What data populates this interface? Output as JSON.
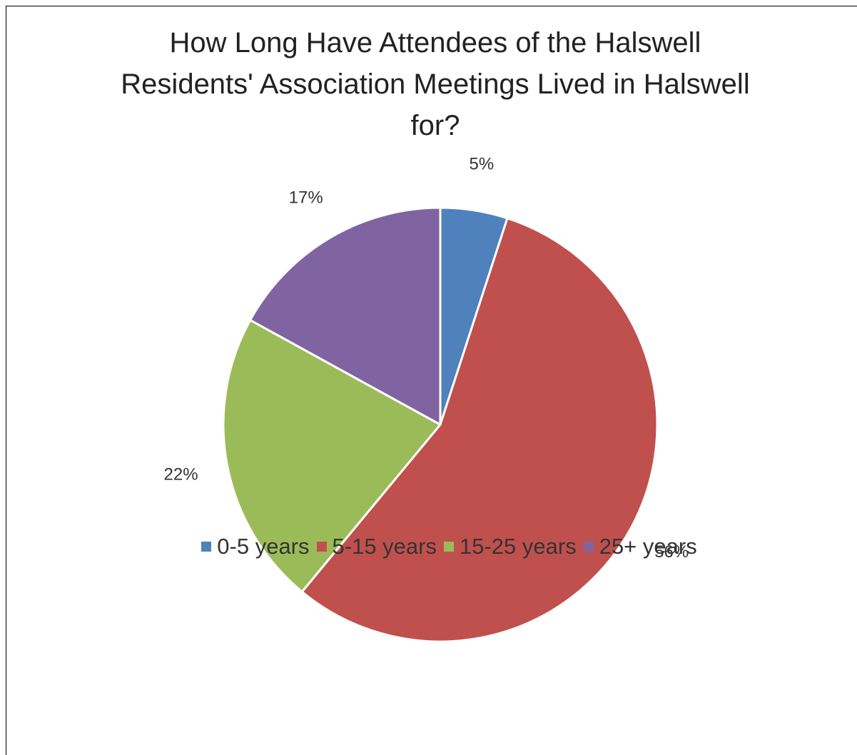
{
  "chart_data": {
    "type": "pie",
    "title": "How Long Have Attendees of the Halswell Residents' Association Meetings Lived in Halswell for?",
    "categories": [
      "0-5 years",
      "5-15 years",
      "15-25 years",
      "25+ years"
    ],
    "values": [
      5,
      56,
      22,
      17
    ],
    "value_labels": [
      "5%",
      "56%",
      "22%",
      "17%"
    ],
    "colors": [
      "#4F81BD",
      "#C0504D",
      "#9BBB59",
      "#8064A2"
    ],
    "legend": "bottom"
  }
}
